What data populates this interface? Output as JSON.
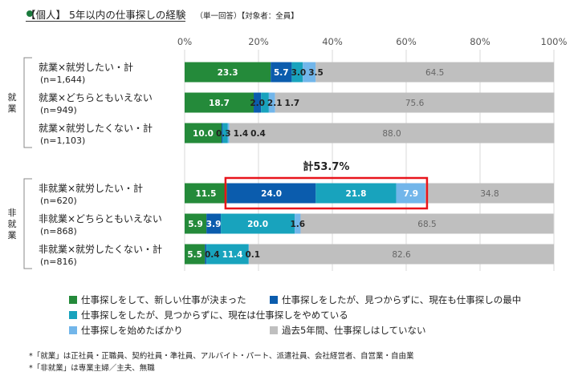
{
  "title": {
    "main": "【個人】 5年以内の仕事探しの経験",
    "sub": "（単一回答）【対象者：全員】"
  },
  "chart_data": {
    "type": "bar",
    "orientation": "horizontal",
    "stacked": true,
    "xlim": [
      0,
      100
    ],
    "x_ticks": [
      "0%",
      "20%",
      "40%",
      "60%",
      "80%",
      "100%"
    ],
    "grid": true,
    "groups": [
      {
        "label": "就業",
        "rows": [
          0,
          1,
          2
        ]
      },
      {
        "label": "非就業",
        "rows": [
          3,
          4,
          5
        ]
      }
    ],
    "categories": [
      {
        "label": "就業×就労したい・計",
        "n": "(n=1,644)"
      },
      {
        "label": "就業×どちらともいえない",
        "n": "(n=949)"
      },
      {
        "label": "就業×就労したくない・計",
        "n": "(n=1,103)"
      },
      {
        "label": "非就業×就労したい・計",
        "n": "(n=620)"
      },
      {
        "label": "非就業×どちらともいえない",
        "n": "(n=868)"
      },
      {
        "label": "非就業×就労したくない・計",
        "n": "(n=816)"
      }
    ],
    "series": [
      {
        "name": "仕事探しをして、新しい仕事が決まった",
        "color": "#248a3a",
        "values": [
          23.3,
          18.7,
          10.0,
          11.5,
          5.9,
          5.5
        ]
      },
      {
        "name": "仕事探しをしたが、見つからずに、現在も仕事探しの最中",
        "color": "#0b5cad",
        "values": [
          5.7,
          2.0,
          0.3,
          24.0,
          3.9,
          0.4
        ]
      },
      {
        "name": "仕事探しをしたが、見つからずに、現在は仕事探しをやめている",
        "color": "#18a3bd",
        "values": [
          3.0,
          2.1,
          1.4,
          21.8,
          20.0,
          11.4
        ]
      },
      {
        "name": "仕事探しを始めたばかり",
        "color": "#72b6ea",
        "values": [
          3.5,
          1.7,
          0.4,
          7.9,
          1.6,
          0.1
        ]
      },
      {
        "name": "過去5年間、仕事探しはしていない",
        "color": "#bfbfbf",
        "values": [
          64.5,
          75.6,
          88.0,
          34.8,
          68.5,
          82.6
        ]
      }
    ],
    "annotation": {
      "text": "計53.7%",
      "row": 3,
      "series_span": [
        1,
        3
      ],
      "highlight_color": "#e8141b"
    }
  },
  "notes": [
    "*「就業」は正社員・正職員、契約社員・準社員、アルバイト・パート、派遣社員、会社経営者、自営業・自由業",
    "*「非就業」は専業主婦／主夫、無職"
  ]
}
